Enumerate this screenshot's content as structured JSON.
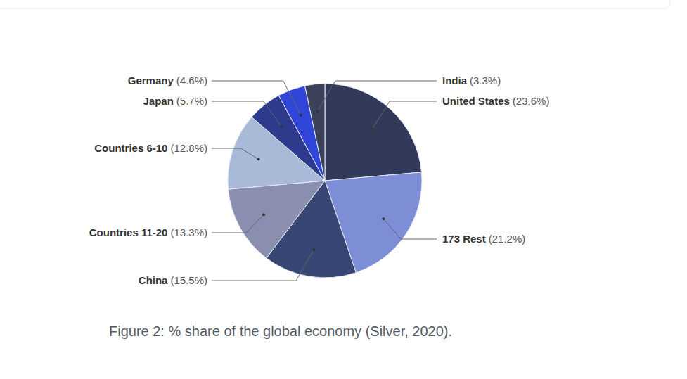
{
  "chart_data": {
    "type": "pie",
    "title": "Figure 2: % share of the global economy (Silver, 2020).",
    "categories": [
      "United States",
      "173 Rest",
      "China",
      "Countries 11-20",
      "Countries 6-10",
      "Japan",
      "Germany",
      "India"
    ],
    "values": [
      23.6,
      21.2,
      15.5,
      13.3,
      12.8,
      5.7,
      4.6,
      3.3
    ],
    "value_labels": [
      "(23.6%)",
      "(21.2%)",
      "(15.5%)",
      "(13.3%)",
      "(12.8%)",
      "(5.7%)",
      "(4.6%)",
      "(3.3%)"
    ],
    "colors": [
      "#323a5a",
      "#7e8ed6",
      "#374672",
      "#8a8fb0",
      "#a9b9d8",
      "#2e3a8c",
      "#2f46d8",
      "#3a4158"
    ],
    "data_labels": true
  }
}
